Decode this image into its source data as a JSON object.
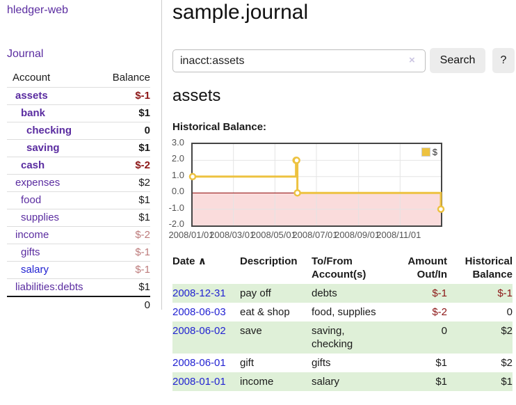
{
  "sidebar": {
    "brand": "hledger-web",
    "nav": {
      "journal": "Journal"
    },
    "table": {
      "header": {
        "account": "Account",
        "balance": "Balance"
      },
      "rows": [
        {
          "account": "assets",
          "balance": "$-1"
        },
        {
          "account": "bank",
          "balance": "$1"
        },
        {
          "account": "checking",
          "balance": "0"
        },
        {
          "account": "saving",
          "balance": "$1"
        },
        {
          "account": "cash",
          "balance": "$-2"
        },
        {
          "account": "expenses",
          "balance": "$2"
        },
        {
          "account": "food",
          "balance": "$1"
        },
        {
          "account": "supplies",
          "balance": "$1"
        },
        {
          "account": "income",
          "balance": "$-2"
        },
        {
          "account": "gifts",
          "balance": "$-1"
        },
        {
          "account": "salary",
          "balance": "$-1"
        },
        {
          "account": "liabilities:debts",
          "balance": "$1"
        }
      ],
      "total": "0"
    }
  },
  "header": {
    "title": "sample.journal"
  },
  "search": {
    "value": "inacct:assets",
    "clear_icon": "×",
    "search_button": "Search",
    "help_button": "?"
  },
  "account_view": {
    "title": "assets",
    "chart_title": "Historical Balance:"
  },
  "chart_data": {
    "type": "line",
    "step": true,
    "title": "Historical Balance:",
    "xrange": [
      "2008-01-01",
      "2008-12-31"
    ],
    "ylim": [
      -2,
      3
    ],
    "yticks": [
      "3.0",
      "2.0",
      "1.0",
      "0.0",
      "-1.0",
      "-2.0"
    ],
    "xticks": [
      "2008/01/01",
      "2008/03/01",
      "2008/05/01",
      "2008/07/01",
      "2008/09/01",
      "2008/11/01"
    ],
    "series": [
      {
        "name": "$",
        "color": "#edc240",
        "points": [
          [
            "2008-01-01",
            1
          ],
          [
            "2008-06-01",
            2
          ],
          [
            "2008-06-02",
            2
          ],
          [
            "2008-06-03",
            0
          ],
          [
            "2008-12-31",
            -1
          ]
        ]
      }
    ],
    "legend": {
      "label": "$",
      "position": "top-right"
    },
    "colors": {
      "grid": "#e4e4e4",
      "zero_line": "#8b0000",
      "negative_region": "#fadcdc",
      "border": "#454545"
    }
  },
  "register": {
    "headers": {
      "date": "Date",
      "description": "Description",
      "accounts": "To/From Account(s)",
      "amount": "Amount Out/In",
      "balance": "Historical Balance"
    },
    "sort_icon": "∧",
    "rows": [
      {
        "date": "2008-12-31",
        "description": "pay off",
        "accounts": "debts",
        "amount": "$-1",
        "balance": "$-1"
      },
      {
        "date": "2008-06-03",
        "description": "eat & shop",
        "accounts": "food, supplies",
        "amount": "$-2",
        "balance": "0"
      },
      {
        "date": "2008-06-02",
        "description": "save",
        "accounts": "saving, checking",
        "amount": "0",
        "balance": "$2"
      },
      {
        "date": "2008-06-01",
        "description": "gift",
        "accounts": "gifts",
        "amount": "$1",
        "balance": "$2"
      },
      {
        "date": "2008-01-01",
        "description": "income",
        "accounts": "salary",
        "amount": "$1",
        "balance": "$1"
      }
    ]
  }
}
